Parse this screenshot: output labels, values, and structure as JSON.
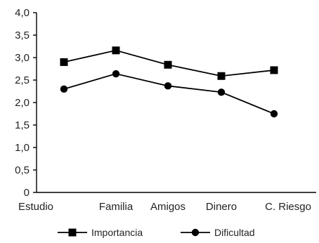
{
  "chart_data": {
    "type": "line",
    "categories": [
      "Estudio",
      "Familia",
      "Amigos",
      "Dinero",
      "C. Riesgo"
    ],
    "series": [
      {
        "name": "Importancia",
        "marker": "square",
        "values": [
          2.9,
          3.16,
          2.84,
          2.59,
          2.72
        ]
      },
      {
        "name": "Dificultad",
        "marker": "circle",
        "values": [
          2.3,
          2.64,
          2.37,
          2.23,
          1.75
        ]
      }
    ],
    "ylim": [
      0,
      4
    ],
    "y_ticks": [
      "0",
      "0,5",
      "1,0",
      "1,5",
      "2,0",
      "2,5",
      "3,0",
      "3,5",
      "4,0"
    ],
    "grid": false,
    "legend_position": "bottom",
    "colors": {
      "line": "#000000",
      "text": "#222222"
    }
  }
}
